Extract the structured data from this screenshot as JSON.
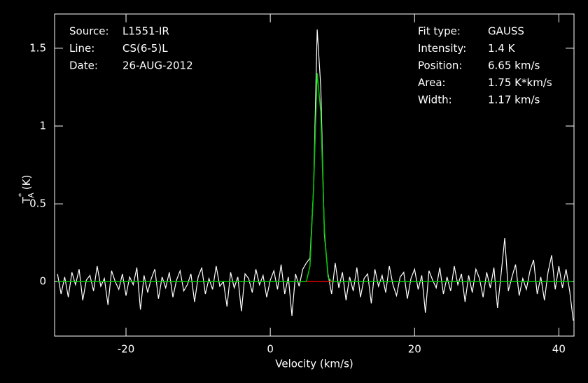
{
  "chart_data": {
    "type": "line",
    "xlabel": "Velocity (km/s)",
    "ylabel": {
      "main": "T",
      "sup": "*",
      "sub": "A",
      "unit": "(K)"
    },
    "xlim": [
      -29.9,
      42.1
    ],
    "ylim": [
      -0.35,
      1.72
    ],
    "xticks": [
      -20,
      0,
      20,
      40
    ],
    "yticks": [
      0,
      0.5,
      1,
      1.5
    ],
    "info_left": [
      [
        "Source:",
        "L1551-IR"
      ],
      [
        "Line:",
        "CS(6-5)L"
      ],
      [
        "Date:",
        "26-AUG-2012"
      ]
    ],
    "info_right": [
      [
        "Fit type:",
        "GAUSS"
      ],
      [
        "Intensity:",
        "1.4 K"
      ],
      [
        "Position:",
        "6.65 km/s"
      ],
      [
        "Area:",
        "1.75 K*km/s"
      ],
      [
        "Width:",
        "1.17 km/s"
      ]
    ],
    "x": [
      -29.5,
      -29,
      -28.5,
      -28,
      -27.5,
      -27,
      -26.5,
      -26,
      -25.5,
      -25,
      -24.5,
      -24,
      -23.5,
      -23,
      -22.5,
      -22,
      -21.5,
      -21,
      -20.5,
      -20,
      -19.5,
      -19,
      -18.5,
      -18,
      -17.5,
      -17,
      -16.5,
      -16,
      -15.5,
      -15,
      -14.5,
      -14,
      -13.5,
      -13,
      -12.5,
      -12,
      -11.5,
      -11,
      -10.5,
      -10,
      -9.5,
      -9,
      -8.5,
      -8,
      -7.5,
      -7,
      -6.5,
      -6,
      -5.5,
      -5,
      -4.5,
      -4,
      -3.5,
      -3,
      -2.5,
      -2,
      -1.5,
      -1,
      -0.5,
      0,
      0.5,
      1,
      1.5,
      2,
      2.5,
      3,
      3.5,
      4,
      4.5,
      5,
      5.5,
      6,
      6.5,
      7,
      7.5,
      8,
      8.5,
      9,
      9.5,
      10,
      10.5,
      11,
      11.5,
      12,
      12.5,
      13,
      13.5,
      14,
      14.5,
      15,
      15.5,
      16,
      16.5,
      17,
      17.5,
      18,
      18.5,
      19,
      19.5,
      20,
      20.5,
      21,
      21.5,
      22,
      22.5,
      23,
      23.5,
      24,
      24.5,
      25,
      25.5,
      26,
      26.5,
      27,
      27.5,
      28,
      28.5,
      29,
      29.5,
      30,
      30.5,
      31,
      31.5,
      32,
      32.5,
      33,
      33.5,
      34,
      34.5,
      35,
      35.5,
      36,
      36.5,
      37,
      37.5,
      38,
      38.5,
      39,
      39.5,
      40,
      40.5,
      41,
      41.5,
      42
    ],
    "series": [
      {
        "name": "spectrum",
        "color": "#ffffff",
        "values": [
          0.05,
          -0.08,
          0.03,
          -0.1,
          0.06,
          -0.02,
          0.08,
          -0.12,
          0.01,
          0.04,
          -0.06,
          0.1,
          -0.03,
          0.02,
          -0.15,
          0.07,
          0.0,
          -0.05,
          0.05,
          -0.09,
          0.03,
          -0.02,
          0.09,
          -0.18,
          0.04,
          -0.07,
          0.02,
          0.08,
          -0.11,
          0.03,
          -0.04,
          0.06,
          -0.1,
          0.01,
          0.07,
          -0.06,
          -0.02,
          0.05,
          -0.13,
          0.03,
          0.09,
          -0.08,
          0.02,
          -0.05,
          0.1,
          -0.03,
          0.0,
          -0.16,
          0.06,
          -0.04,
          0.03,
          -0.19,
          0.05,
          0.02,
          -0.07,
          0.08,
          -0.02,
          0.04,
          -0.1,
          0.01,
          0.07,
          -0.05,
          0.11,
          -0.08,
          0.03,
          -0.22,
          0.05,
          -0.03,
          0.08,
          0.12,
          0.15,
          0.6,
          1.62,
          1.25,
          0.3,
          0.05,
          -0.08,
          0.12,
          -0.04,
          0.06,
          -0.12,
          0.03,
          -0.06,
          0.09,
          -0.1,
          0.02,
          0.05,
          -0.14,
          0.08,
          -0.03,
          0.04,
          -0.07,
          0.1,
          -0.02,
          -0.09,
          0.03,
          0.06,
          -0.11,
          0.02,
          0.08,
          -0.05,
          0.04,
          -0.2,
          0.07,
          0.01,
          -0.04,
          0.09,
          -0.08,
          0.03,
          -0.06,
          0.1,
          -0.02,
          0.05,
          -0.13,
          0.04,
          -0.07,
          0.08,
          0.02,
          -0.1,
          0.06,
          -0.04,
          0.09,
          -0.17,
          0.05,
          0.28,
          -0.06,
          0.03,
          0.11,
          -0.09,
          0.02,
          -0.05,
          0.07,
          0.14,
          -0.08,
          0.03,
          -0.12,
          0.06,
          0.17,
          -0.05,
          0.1,
          -0.04,
          0.08,
          -0.06,
          -0.25
        ]
      },
      {
        "name": "fit",
        "color": "#00cc00",
        "values": [
          0,
          0,
          0,
          0,
          0,
          0,
          0,
          0,
          0,
          0,
          0,
          0,
          0,
          0,
          0,
          0,
          0,
          0,
          0,
          0,
          0,
          0,
          0,
          0,
          0,
          0,
          0,
          0,
          0,
          0,
          0,
          0,
          0,
          0,
          0,
          0,
          0,
          0,
          0,
          0,
          0,
          0,
          0,
          0,
          0,
          0,
          0,
          0,
          0,
          0,
          0,
          0,
          0,
          0,
          0,
          0,
          0,
          0,
          0,
          0,
          0,
          0,
          0,
          0,
          0,
          0,
          0,
          0,
          0,
          0,
          0.1,
          0.6,
          1.34,
          1.09,
          0.33,
          0.03,
          0,
          0,
          0,
          0,
          0,
          0,
          0,
          0,
          0,
          0,
          0,
          0,
          0,
          0,
          0,
          0,
          0,
          0,
          0,
          0,
          0,
          0,
          0,
          0,
          0,
          0,
          0,
          0,
          0,
          0,
          0,
          0,
          0,
          0,
          0,
          0,
          0,
          0,
          0,
          0,
          0,
          0,
          0,
          0,
          0,
          0,
          0,
          0,
          0,
          0,
          0,
          0,
          0,
          0,
          0,
          0,
          0,
          0,
          0,
          0,
          0,
          0,
          0,
          0,
          0,
          0,
          0,
          0
        ]
      },
      {
        "name": "baseline",
        "color": "#e00000",
        "values": [
          null,
          null,
          null,
          null,
          null,
          null,
          null,
          null,
          null,
          null,
          null,
          null,
          null,
          null,
          null,
          null,
          null,
          null,
          null,
          null,
          null,
          null,
          null,
          null,
          null,
          null,
          null,
          null,
          null,
          null,
          null,
          null,
          null,
          null,
          null,
          null,
          null,
          null,
          null,
          null,
          null,
          null,
          null,
          null,
          null,
          null,
          null,
          null,
          null,
          null,
          null,
          null,
          null,
          null,
          null,
          null,
          null,
          null,
          null,
          null,
          null,
          null,
          null,
          null,
          null,
          null,
          null,
          null,
          null,
          0,
          0,
          0,
          0,
          0,
          0,
          0,
          0,
          null,
          null,
          null,
          null,
          null,
          null,
          null,
          null,
          null,
          null,
          null,
          null,
          null,
          null,
          null,
          null,
          null,
          null,
          null,
          null,
          null,
          null,
          null,
          null,
          null,
          null,
          null,
          null,
          null,
          null,
          null,
          null,
          null,
          null,
          null,
          null,
          null,
          null,
          null,
          null,
          null,
          null,
          null,
          null,
          null,
          null,
          null,
          null,
          null,
          null,
          null,
          null,
          null,
          null,
          null,
          null,
          null,
          null,
          null,
          null,
          null,
          null,
          null,
          null,
          null,
          null,
          null
        ]
      }
    ]
  }
}
